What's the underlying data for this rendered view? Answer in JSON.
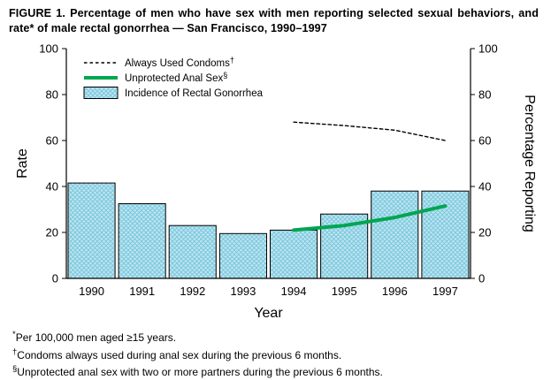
{
  "title": "FIGURE 1. Percentage of men who have sex with men reporting selected sexual behaviors, and rate* of male rectal gonorrhea — San Francisco, 1990–1997",
  "chart_data": {
    "type": "bar",
    "categories": [
      1990,
      1991,
      1992,
      1993,
      1994,
      1995,
      1996,
      1997
    ],
    "series": [
      {
        "name": "Incidence of Rectal Gonorrhea",
        "type": "bar",
        "color": "#bfe3ef",
        "values": [
          41.5,
          32.5,
          23,
          19.5,
          21,
          28,
          38,
          38
        ]
      },
      {
        "name": "Always Used Condoms†",
        "type": "line",
        "style": "dashed",
        "color": "#000000",
        "x": [
          1994,
          1995,
          1996,
          1997
        ],
        "values": [
          68,
          66.5,
          64.5,
          60
        ]
      },
      {
        "name": "Unprotected Anal Sex§",
        "type": "line",
        "style": "solid",
        "color": "#00a651",
        "x": [
          1994,
          1995,
          1996,
          1997
        ],
        "values": [
          21,
          23,
          26.5,
          31.5
        ]
      }
    ],
    "legend": [
      {
        "label": "Always Used Condoms†",
        "type": "dashed-line",
        "color": "#000000"
      },
      {
        "label": "Unprotected Anal Sex§",
        "type": "solid-line",
        "color": "#00a651"
      },
      {
        "label": "Incidence of Rectal Gonorrhea",
        "type": "hatched-box",
        "color": "#bfe3ef"
      }
    ],
    "bar_fill": "#bfe3ef",
    "bar_hatch": "#6ec6dc",
    "ylabel_left": "Rate",
    "ylabel_right": "Percentage Reporting",
    "xlabel": "Year",
    "ylim": [
      0,
      100
    ],
    "yticks": [
      0,
      20,
      40,
      60,
      80,
      100
    ],
    "grid": false,
    "legend_position": "top-left-inside"
  },
  "footnotes": [
    {
      "marker": "*",
      "text": "Per 100,000 men aged ≥15 years."
    },
    {
      "marker": "†",
      "text": "Condoms always used during anal sex during the previous 6 months."
    },
    {
      "marker": "§",
      "text": "Unprotected anal sex with two or more partners during the previous 6 months."
    }
  ]
}
